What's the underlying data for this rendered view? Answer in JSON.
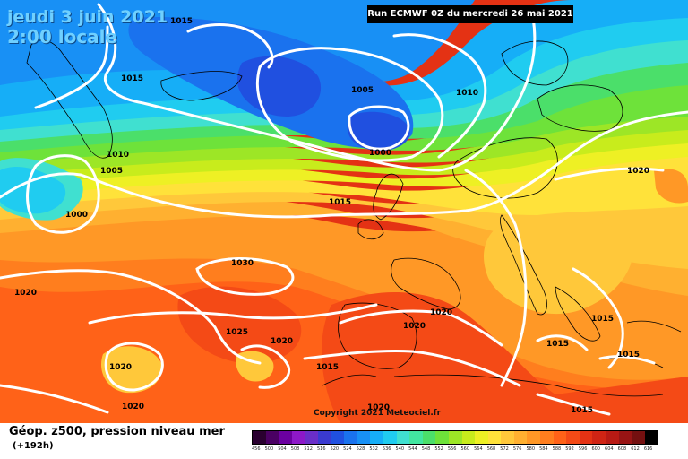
{
  "header": {
    "date_line": "jeudi 3 juin 2021",
    "time_line": "2:00 locale",
    "run_info": "Run ECMWF 0Z du mercredi 26 mai 2021"
  },
  "copyright": "Copyright 2021 Meteociel.fr",
  "legend": {
    "title": "Géop. z500, pression niveau mer",
    "subtitle": "(+192h)",
    "scale_values": [
      "456",
      "500",
      "504",
      "508",
      "512",
      "516",
      "520",
      "524",
      "528",
      "532",
      "536",
      "540",
      "544",
      "548",
      "552",
      "556",
      "560",
      "564",
      "568",
      "572",
      "576",
      "580",
      "584",
      "588",
      "592",
      "596",
      "600",
      "604",
      "608",
      "612",
      "616"
    ],
    "scale_colors": [
      "#2a0030",
      "#4a0063",
      "#6b00a0",
      "#8d18c8",
      "#6a2ec8",
      "#3a3ad0",
      "#2050e0",
      "#1a72ee",
      "#1890f5",
      "#16aef7",
      "#20ccf0",
      "#40e0d0",
      "#42e6a0",
      "#4bdf6a",
      "#6ee23a",
      "#9de626",
      "#c8ec1c",
      "#eef024",
      "#ffe23a",
      "#ffc83a",
      "#ffb030",
      "#ff9826",
      "#ff7e1e",
      "#ff6218",
      "#f44a16",
      "#e43214",
      "#d02414",
      "#b81a14",
      "#981414",
      "#741010",
      "#000000"
    ]
  },
  "isobars": [
    {
      "label": "1015"
    },
    {
      "label": "1015"
    },
    {
      "label": "1005"
    },
    {
      "label": "1010"
    },
    {
      "label": "1000"
    },
    {
      "label": "1010"
    },
    {
      "label": "1005"
    },
    {
      "label": "1000"
    },
    {
      "label": "1015"
    },
    {
      "label": "1020"
    },
    {
      "label": "1030"
    },
    {
      "label": "1020"
    },
    {
      "label": "1025"
    },
    {
      "label": "1020"
    },
    {
      "label": "1020"
    },
    {
      "label": "1020"
    },
    {
      "label": "1015"
    },
    {
      "label": "1020"
    },
    {
      "label": "1015"
    },
    {
      "label": "1015"
    },
    {
      "label": "1015"
    },
    {
      "label": "1020"
    },
    {
      "label": "1015"
    },
    {
      "label": "1020"
    }
  ]
}
